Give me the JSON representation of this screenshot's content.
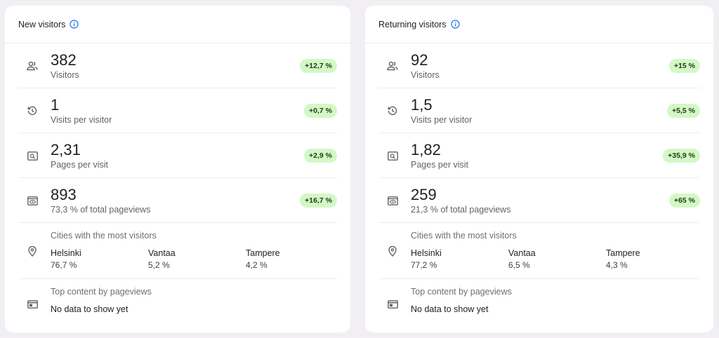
{
  "cards": [
    {
      "title": "New visitors",
      "metrics": [
        {
          "value": "382",
          "label": "Visitors",
          "change": "+12,7 %",
          "icon": "people-icon"
        },
        {
          "value": "1",
          "label": "Visits per visitor",
          "change": "+0,7 %",
          "icon": "history-icon"
        },
        {
          "value": "2,31",
          "label": "Pages per visit",
          "change": "+2,9 %",
          "icon": "page-search-icon"
        },
        {
          "value": "893",
          "label": "73,3 % of total pageviews",
          "change": "+16,7 %",
          "icon": "eye-window-icon"
        }
      ],
      "cities": {
        "label": "Cities with the most visitors",
        "items": [
          {
            "name": "Helsinki",
            "pct": "76,7 %"
          },
          {
            "name": "Vantaa",
            "pct": "5,2 %"
          },
          {
            "name": "Tampere",
            "pct": "4,2 %"
          }
        ]
      },
      "top_content": {
        "label": "Top content by pageviews",
        "empty": "No data to show yet"
      }
    },
    {
      "title": "Returning visitors",
      "metrics": [
        {
          "value": "92",
          "label": "Visitors",
          "change": "+15 %",
          "icon": "people-icon"
        },
        {
          "value": "1,5",
          "label": "Visits per visitor",
          "change": "+5,5 %",
          "icon": "history-icon"
        },
        {
          "value": "1,82",
          "label": "Pages per visit",
          "change": "+35,9 %",
          "icon": "page-search-icon"
        },
        {
          "value": "259",
          "label": "21,3 % of total pageviews",
          "change": "+65 %",
          "icon": "eye-window-icon"
        }
      ],
      "cities": {
        "label": "Cities with the most visitors",
        "items": [
          {
            "name": "Helsinki",
            "pct": "77,2 %"
          },
          {
            "name": "Vantaa",
            "pct": "6,5 %"
          },
          {
            "name": "Tampere",
            "pct": "4,3 %"
          }
        ]
      },
      "top_content": {
        "label": "Top content by pageviews",
        "empty": "No data to show yet"
      }
    }
  ],
  "colors": {
    "badge_bg": "#d3f8c6",
    "badge_text": "#1f3a12",
    "info_icon": "#1a73e8",
    "icon_gray": "#5f6368"
  }
}
